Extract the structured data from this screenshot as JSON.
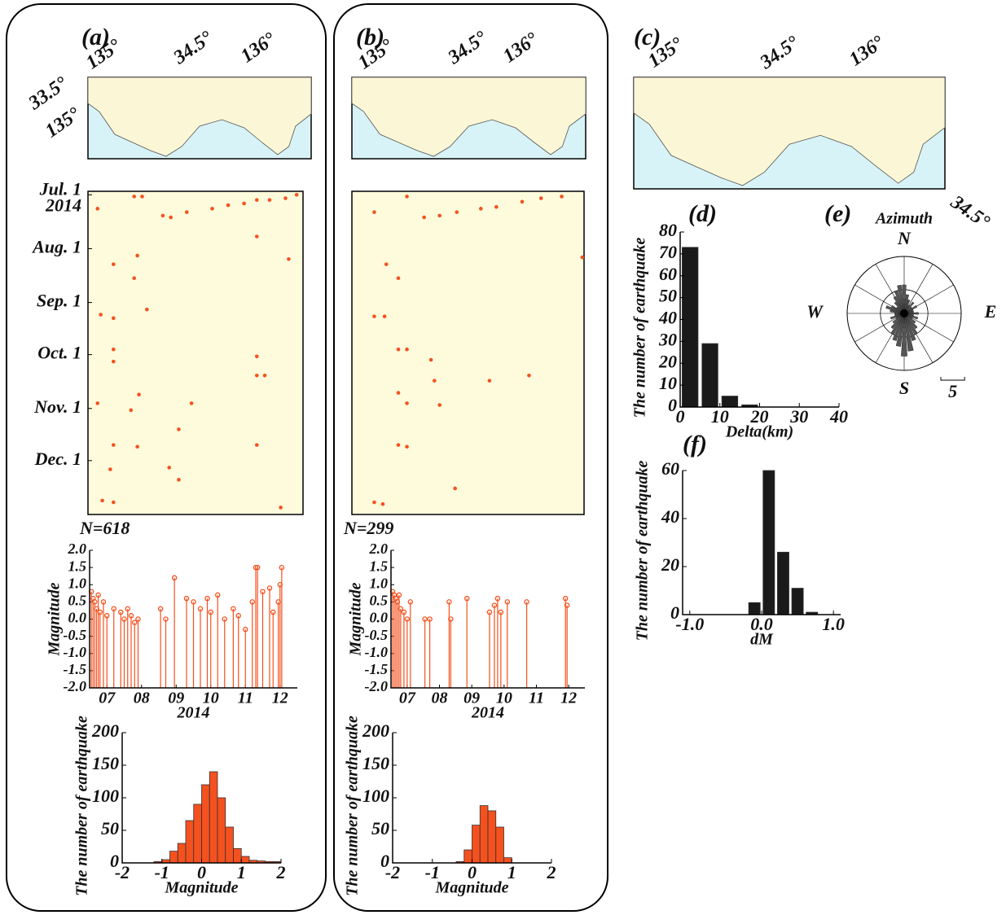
{
  "chart_data": [
    {
      "type": "map",
      "panel": "(a)",
      "top_labels": [
        "135°",
        "34.5°",
        "136°"
      ],
      "left_labels": [
        "33.5°",
        "135°"
      ]
    },
    {
      "type": "scatter",
      "color": "#f4511e",
      "xlim": [
        134.95,
        136.3
      ],
      "ylim": [
        -2,
        184
      ],
      "yticks": [
        {
          "value": 0,
          "label": "Jul. 1"
        },
        {
          "value": 31,
          "label": "Aug. 1"
        },
        {
          "value": 62,
          "label": "Sep. 1"
        },
        {
          "value": 92,
          "label": "Oct. 1"
        },
        {
          "value": 123,
          "label": "Nov. 1"
        },
        {
          "value": 153,
          "label": "Dec. 1"
        }
      ],
      "year": "2014",
      "note": "N=618",
      "x": [
        135.01,
        135.24,
        135.29,
        135.42,
        135.47,
        135.57,
        135.73,
        135.83,
        135.93,
        136.01,
        136.09,
        136.19,
        136.26,
        136.01,
        135.26,
        136.21,
        135.11,
        135.24,
        135.32,
        135.03,
        135.11,
        135.11,
        135.11,
        136.01,
        136.01,
        136.06,
        135.27,
        135.22,
        135.01,
        135.6,
        135.52,
        135.11,
        135.26,
        136.01,
        135.09,
        135.46,
        135.52,
        135.04,
        135.11,
        136.16
      ],
      "values": [
        8,
        1,
        1,
        12,
        13,
        10,
        8,
        6,
        5,
        3,
        3,
        2,
        0,
        24,
        35,
        37,
        40,
        48,
        66,
        69,
        71,
        89,
        96,
        93,
        104,
        104,
        115,
        124,
        120,
        120,
        135,
        144,
        145,
        144,
        158,
        157,
        164,
        176,
        177,
        180
      ]
    },
    {
      "type": "stem",
      "color": "#f4511e",
      "xlim": [
        7,
        13
      ],
      "ylim": [
        -2,
        2
      ],
      "xlabel": "2014",
      "ylabel": "Magnitude",
      "xticks": [
        {
          "value": 7.5,
          "label": "07"
        },
        {
          "value": 8.5,
          "label": "08"
        },
        {
          "value": 9.5,
          "label": "09"
        },
        {
          "value": 10.5,
          "label": "10"
        },
        {
          "value": 11.5,
          "label": "11"
        },
        {
          "value": 12.5,
          "label": "12"
        }
      ],
      "yticks": [
        {
          "value": 2,
          "label": "2.0"
        },
        1.5,
        {
          "value": 1,
          "label": "1.0"
        },
        0.5,
        {
          "value": 0,
          "label": "0.0"
        },
        -0.5,
        {
          "value": -1,
          "label": "-1.0"
        },
        -1.5,
        {
          "value": -2,
          "label": "-2.0"
        }
      ],
      "x": [
        7.05,
        7.1,
        7.15,
        7.2,
        7.25,
        7.3,
        7.4,
        7.5,
        7.7,
        7.9,
        8.0,
        8.1,
        8.2,
        8.3,
        8.4,
        9.05,
        9.2,
        9.45,
        9.8,
        10.0,
        10.2,
        10.4,
        10.5,
        10.7,
        10.9,
        11.15,
        11.3,
        11.5,
        11.7,
        11.8,
        11.85,
        12.0,
        12.2,
        12.3,
        12.45,
        12.5,
        12.55
      ],
      "values": [
        0.8,
        0.6,
        0.5,
        0.3,
        0.7,
        0.2,
        0.5,
        0.1,
        0.3,
        0.2,
        0.0,
        0.3,
        0.1,
        -0.1,
        0.0,
        0.3,
        0.0,
        1.2,
        0.6,
        0.5,
        0.3,
        0.6,
        0.2,
        0.7,
        0.0,
        0.3,
        0.1,
        -0.3,
        0.5,
        1.5,
        1.5,
        0.8,
        0.9,
        0.2,
        0.5,
        1.0,
        1.5
      ]
    },
    {
      "type": "histogram",
      "color": "#f4511e",
      "xlim": [
        -2,
        2
      ],
      "ylim": [
        0,
        200
      ],
      "xticks": [
        -2,
        -1,
        0,
        1,
        2
      ],
      "yticks": [
        0,
        50,
        100,
        150,
        200
      ],
      "xlabel": "Magnitude",
      "ylabel": "The number of earthquake",
      "bins": [
        -1.2,
        -1.0,
        -0.8,
        -0.6,
        -0.4,
        -0.2,
        0.0,
        0.2,
        0.4,
        0.6,
        0.8,
        1.0,
        1.2,
        1.4,
        1.6,
        1.8,
        2.0
      ],
      "values": [
        2,
        5,
        18,
        30,
        65,
        90,
        120,
        140,
        100,
        55,
        22,
        10,
        4,
        3,
        2,
        2
      ]
    },
    {
      "type": "map",
      "panel": "(b)",
      "top_labels": [
        "135°",
        "34.5°",
        "136°"
      ]
    },
    {
      "type": "scatter",
      "color": "#f4511e",
      "xlim": [
        134.95,
        136.3
      ],
      "ylim": [
        -2,
        184
      ],
      "note": "N=299",
      "x": [
        135.08,
        135.27,
        135.37,
        135.46,
        135.56,
        135.7,
        135.79,
        135.94,
        136.05,
        136.17,
        136.29,
        135.15,
        135.22,
        135.08,
        135.14,
        135.22,
        135.27,
        135.41,
        135.43,
        135.75,
        135.98,
        135.22,
        135.27,
        135.46,
        135.27,
        135.22,
        135.55,
        135.08,
        135.13
      ],
      "values": [
        10,
        1,
        13,
        12,
        10,
        8,
        7,
        4,
        2,
        1,
        36,
        40,
        48,
        70,
        70,
        89,
        89,
        95,
        107,
        107,
        104,
        114,
        120,
        121,
        145,
        144,
        169,
        177,
        178
      ]
    },
    {
      "type": "stem",
      "color": "#f4511e",
      "xlim": [
        7,
        13
      ],
      "ylim": [
        -2,
        2
      ],
      "xlabel": "2014",
      "ylabel": "Magnitude",
      "xticks": [
        {
          "value": 7.5,
          "label": "07"
        },
        {
          "value": 8.5,
          "label": "08"
        },
        {
          "value": 9.5,
          "label": "09"
        },
        {
          "value": 10.5,
          "label": "10"
        },
        {
          "value": 11.5,
          "label": "11"
        },
        {
          "value": 12.5,
          "label": "12"
        }
      ],
      "yticks": [
        {
          "value": 2,
          "label": "2.0"
        },
        1.5,
        {
          "value": 1,
          "label": "1.0"
        },
        0.5,
        {
          "value": 0,
          "label": "0.0"
        },
        -0.5,
        {
          "value": -1,
          "label": "-1.0"
        },
        -1.5,
        {
          "value": -2,
          "label": "-2.0"
        }
      ],
      "x": [
        7.05,
        7.1,
        7.15,
        7.2,
        7.25,
        7.3,
        7.4,
        7.5,
        7.6,
        8.05,
        8.2,
        8.8,
        8.85,
        9.35,
        10.05,
        10.2,
        10.3,
        10.4,
        10.6,
        11.2,
        12.4,
        12.45
      ],
      "values": [
        0.8,
        0.7,
        0.6,
        0.5,
        0.7,
        0.3,
        0.2,
        0.0,
        0.5,
        0.0,
        0.0,
        0.5,
        0.0,
        0.6,
        0.2,
        0.4,
        0.6,
        0.2,
        0.5,
        0.5,
        0.6,
        0.4
      ]
    },
    {
      "type": "histogram",
      "color": "#f4511e",
      "xlim": [
        -2,
        2
      ],
      "ylim": [
        0,
        200
      ],
      "xticks": [
        -2,
        -1,
        0,
        1,
        2
      ],
      "yticks": [
        0,
        50,
        100,
        150,
        200
      ],
      "xlabel": "Magnitude",
      "ylabel": "The number of earthquake",
      "bins": [
        -0.4,
        -0.2,
        0.0,
        0.2,
        0.4,
        0.6,
        0.8,
        1.0
      ],
      "values": [
        2,
        20,
        58,
        88,
        80,
        55,
        8
      ]
    },
    {
      "type": "map",
      "panel": "(c)",
      "top_labels": [
        "135°",
        "34.5°",
        "136°"
      ],
      "corner_label": "34.5°"
    },
    {
      "type": "histogram",
      "panel": "(d)",
      "color": "#1a1a1a",
      "xlim": [
        0,
        40
      ],
      "ylim": [
        0,
        80
      ],
      "xticks": [
        0,
        10,
        20,
        30,
        40
      ],
      "yticks": [
        0,
        10,
        20,
        30,
        40,
        50,
        60,
        70,
        80
      ],
      "xlabel": "Delta(km)",
      "ylabel": "The number of earthquake",
      "bins": [
        0,
        5,
        10,
        15,
        20
      ],
      "values": [
        73,
        29,
        5,
        1
      ]
    },
    {
      "type": "rose",
      "panel": "(e)",
      "title": "Azimuth",
      "directions": [
        "N",
        "E",
        "S",
        "W"
      ],
      "color": "#555555",
      "rlim": [
        0,
        12
      ],
      "rticks": [
        5
      ],
      "scale": 5,
      "values": [
        6,
        4,
        3,
        2,
        3,
        2,
        3,
        2,
        2,
        3,
        2,
        3,
        2,
        3,
        4,
        5,
        6,
        8,
        9,
        7,
        6,
        5,
        4,
        3,
        2,
        3,
        2,
        2,
        3,
        4,
        3,
        2,
        3,
        4,
        5,
        6
      ]
    },
    {
      "type": "histogram",
      "panel": "(f)",
      "color": "#1a1a1a",
      "xlim": [
        -1.1,
        1.1
      ],
      "ylim": [
        0,
        60
      ],
      "xticks": [
        {
          "value": -1,
          "label": "-1.0"
        },
        {
          "value": 0,
          "label": "0.0"
        },
        {
          "value": 1,
          "label": "1.0"
        }
      ],
      "yticks": [
        0,
        20,
        40,
        60
      ],
      "xlabel": "dM",
      "ylabel": "The number of earthquake",
      "bins": [
        -0.2,
        0.0,
        0.2,
        0.4,
        0.6,
        0.8
      ],
      "values": [
        5,
        60,
        26,
        11,
        1
      ]
    }
  ]
}
